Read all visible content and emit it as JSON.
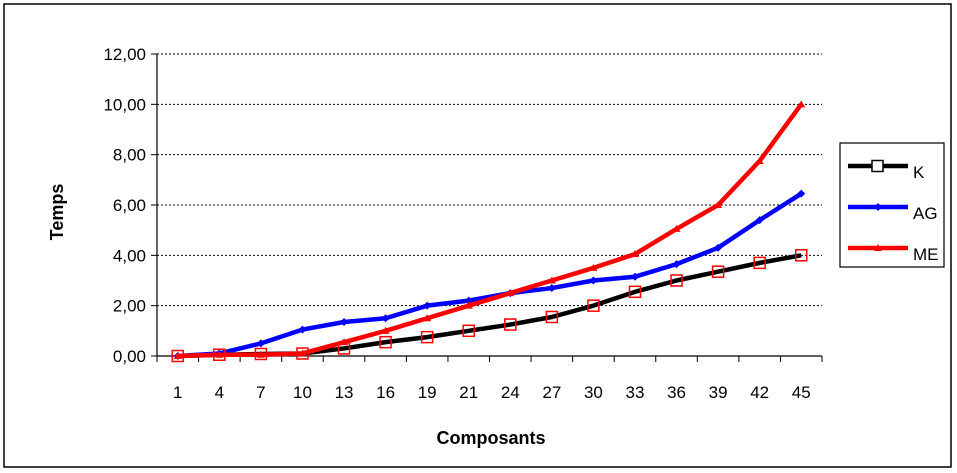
{
  "chart_data": {
    "type": "line",
    "xlabel": "Composants",
    "ylabel": "Temps",
    "categories": [
      "1",
      "4",
      "7",
      "10",
      "13",
      "16",
      "19",
      "21",
      "24",
      "27",
      "30",
      "33",
      "36",
      "39",
      "42",
      "45"
    ],
    "y_ticks": [
      "0,00",
      "2,00",
      "4,00",
      "6,00",
      "8,00",
      "10,00",
      "12,00"
    ],
    "ylim": [
      0,
      12
    ],
    "grid": "horizontal dotted",
    "legend_position": "right",
    "series": [
      {
        "name": "K",
        "color": "#000000",
        "marker": "open-square",
        "values": [
          0.0,
          0.05,
          0.08,
          0.1,
          0.3,
          0.55,
          0.75,
          1.0,
          1.25,
          1.55,
          2.0,
          2.55,
          3.0,
          3.35,
          3.7,
          4.0
        ]
      },
      {
        "name": "AG",
        "color": "#0000ff",
        "marker": "diamond",
        "values": [
          0.0,
          0.1,
          0.5,
          1.05,
          1.35,
          1.5,
          2.0,
          2.2,
          2.5,
          2.7,
          3.0,
          3.15,
          3.65,
          4.3,
          5.4,
          6.45
        ]
      },
      {
        "name": "ME",
        "color": "#ff0000",
        "marker": "triangle",
        "values": [
          0.0,
          0.05,
          0.05,
          0.1,
          0.55,
          1.0,
          1.5,
          2.0,
          2.5,
          3.0,
          3.5,
          4.05,
          5.05,
          6.0,
          7.75,
          10.0
        ]
      }
    ]
  }
}
